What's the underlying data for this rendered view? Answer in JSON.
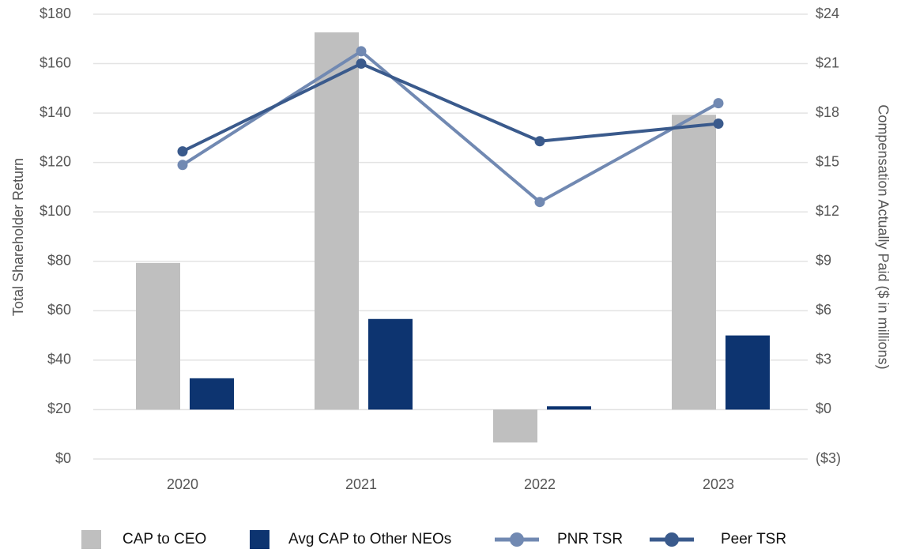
{
  "chart_data": {
    "type": "bar",
    "categories": [
      "2020",
      "2021",
      "2022",
      "2023"
    ],
    "ylabel": "Total Shareholder Return",
    "y2label": "Compensation Actually Paid ($ in millions)",
    "ylim": [
      0,
      180
    ],
    "yticks": [
      {
        "value": 0,
        "label": "$0"
      },
      {
        "value": 20,
        "label": "$20"
      },
      {
        "value": 40,
        "label": "$40"
      },
      {
        "value": 60,
        "label": "$60"
      },
      {
        "value": 80,
        "label": "$80"
      },
      {
        "value": 100,
        "label": "$100"
      },
      {
        "value": 120,
        "label": "$120"
      },
      {
        "value": 140,
        "label": "$140"
      },
      {
        "value": 160,
        "label": "$160"
      },
      {
        "value": 180,
        "label": "$180"
      }
    ],
    "y2lim": [
      -3,
      24
    ],
    "y2ticks": [
      {
        "value": -3,
        "label": "($3)"
      },
      {
        "value": 0,
        "label": "$0"
      },
      {
        "value": 3,
        "label": "$3"
      },
      {
        "value": 6,
        "label": "$6"
      },
      {
        "value": 9,
        "label": "$9"
      },
      {
        "value": 12,
        "label": "$12"
      },
      {
        "value": 15,
        "label": "$15"
      },
      {
        "value": 18,
        "label": "$18"
      },
      {
        "value": 21,
        "label": "$21"
      },
      {
        "value": 24,
        "label": "$24"
      }
    ],
    "grid": true,
    "legend": "bottom",
    "series": [
      {
        "name": "CAP to CEO",
        "type": "bar",
        "axis": "y2",
        "color": "#bfbfbf",
        "values": [
          8.9,
          22.9,
          -2.0,
          17.9
        ]
      },
      {
        "name": "Avg CAP to Other NEOs",
        "type": "bar",
        "axis": "y2",
        "color": "#0d3470",
        "values": [
          1.9,
          5.5,
          0.2,
          4.5
        ]
      },
      {
        "name": "PNR TSR",
        "type": "line",
        "color": "#7189b2",
        "values": [
          119,
          165,
          104,
          144
        ]
      },
      {
        "name": "Peer TSR",
        "type": "line",
        "color": "#3a5a8c",
        "values": [
          124.5,
          160,
          128.6,
          135.7
        ]
      }
    ]
  }
}
